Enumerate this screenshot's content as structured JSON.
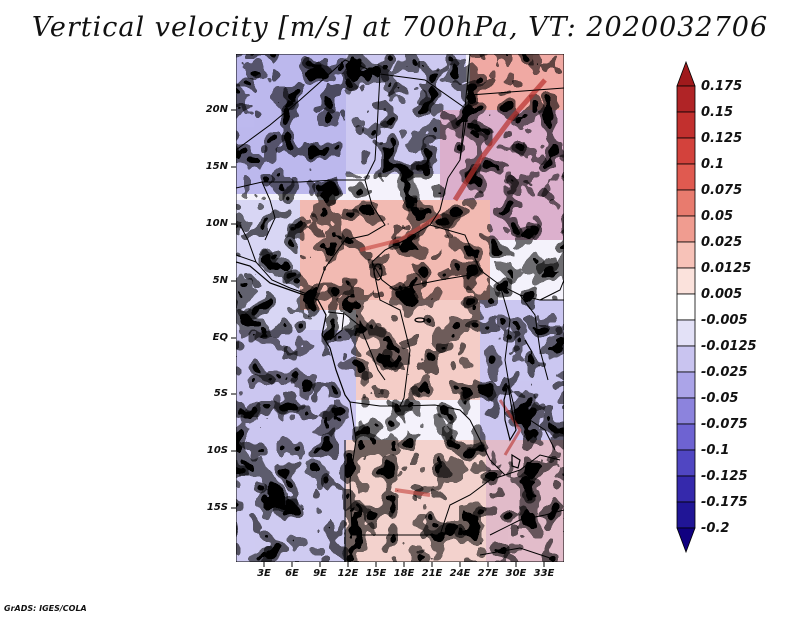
{
  "title": "Vertical velocity [m/s] at 700hPa, VT: 2020032706",
  "credit": "GrADS: IGES/COLA",
  "map": {
    "lat_ticks": [
      "20N",
      "15N",
      "10N",
      "5N",
      "EQ",
      "5S",
      "10S",
      "15S"
    ],
    "lon_ticks": [
      "3E",
      "6E",
      "9E",
      "12E",
      "15E",
      "18E",
      "21E",
      "24E",
      "27E",
      "30E",
      "33E"
    ]
  },
  "colorbar": {
    "labels": [
      "0.175",
      "0.15",
      "0.125",
      "0.1",
      "0.075",
      "0.05",
      "0.025",
      "0.0125",
      "0.005",
      "-0.005",
      "-0.0125",
      "-0.025",
      "-0.05",
      "-0.075",
      "-0.1",
      "-0.125",
      "-0.175",
      "-0.2"
    ],
    "colors": [
      "#a01a1c",
      "#b02426",
      "#c2302e",
      "#d3423c",
      "#e05a50",
      "#e87b6e",
      "#f09c90",
      "#f7c2b8",
      "#fbe2dc",
      "#ffffff",
      "#e3e1f7",
      "#c9c4f0",
      "#aba4e8",
      "#8c83dd",
      "#6e63d2",
      "#5046c2",
      "#3529ac",
      "#201596",
      "#100080"
    ]
  }
}
